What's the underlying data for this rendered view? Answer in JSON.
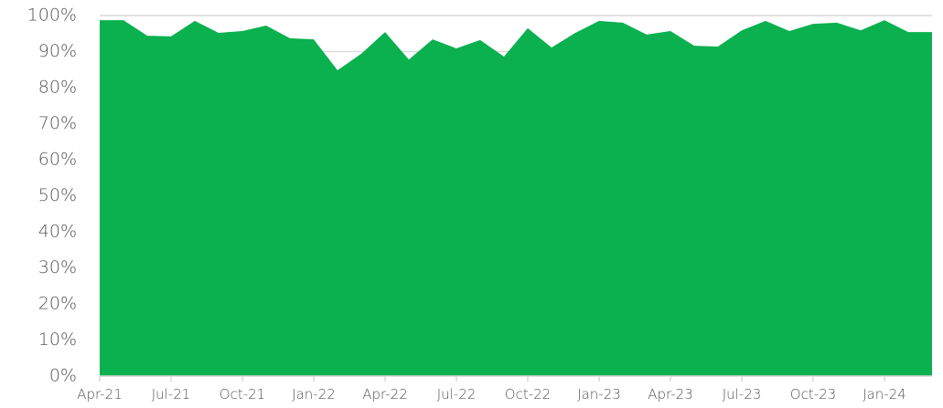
{
  "chart_data": {
    "type": "area",
    "color": "#0bb04f",
    "grid": true,
    "categories": [
      "Apr-21",
      null,
      null,
      "Jul-21",
      null,
      null,
      "Oct-21",
      null,
      null,
      "Jan-22",
      null,
      null,
      "Apr-22",
      null,
      null,
      "Jul-22",
      null,
      null,
      "Oct-22",
      null,
      null,
      "Jan-23",
      null,
      null,
      "Apr-23",
      null,
      null,
      "Jul-23",
      null,
      null,
      "Oct-23",
      null,
      null,
      "Jan-24",
      null,
      null
    ],
    "values": [
      98.7,
      98.7,
      94.4,
      94.2,
      98.5,
      95.2,
      95.7,
      97.2,
      93.7,
      93.4,
      84.8,
      89.4,
      95.4,
      87.8,
      93.4,
      90.9,
      93.2,
      88.6,
      96.5,
      91.1,
      95.2,
      98.5,
      98.0,
      94.7,
      95.7,
      91.6,
      91.4,
      95.9,
      98.5,
      95.7,
      97.7,
      98.0,
      95.9,
      98.7,
      95.4,
      95.4
    ],
    "ylim": [
      0,
      100
    ],
    "yticks": [
      {
        "value": 0,
        "label": "0%"
      },
      {
        "value": 10,
        "label": "10%"
      },
      {
        "value": 20,
        "label": "20%"
      },
      {
        "value": 30,
        "label": "30%"
      },
      {
        "value": 40,
        "label": "40%"
      },
      {
        "value": 50,
        "label": "50%"
      },
      {
        "value": 60,
        "label": "60%"
      },
      {
        "value": 70,
        "label": "70%"
      },
      {
        "value": 80,
        "label": "80%"
      },
      {
        "value": 90,
        "label": "90%"
      },
      {
        "value": 100,
        "label": "100%"
      }
    ]
  }
}
